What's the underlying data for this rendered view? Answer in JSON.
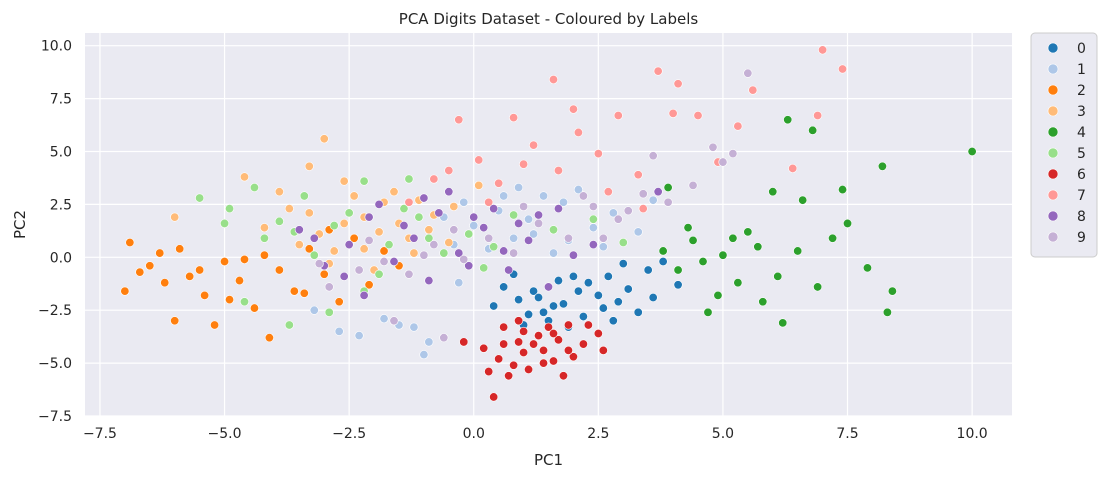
{
  "chart_data": {
    "type": "scatter",
    "title": "PCA Digits Dataset - Coloured by Labels",
    "xlabel": "PC1",
    "ylabel": "PC2",
    "xlim": [
      -7.8,
      10.8
    ],
    "ylim": [
      -7.5,
      10.6
    ],
    "xticks": [
      -7.5,
      -5.0,
      -2.5,
      0.0,
      2.5,
      5.0,
      7.5,
      10.0
    ],
    "yticks": [
      -7.5,
      -5.0,
      -2.5,
      0.0,
      2.5,
      5.0,
      7.5,
      10.0
    ],
    "xtick_labels": [
      "−7.5",
      "−5.0",
      "−2.5",
      "0.0",
      "2.5",
      "5.0",
      "7.5",
      "10.0"
    ],
    "ytick_labels": [
      "−7.5",
      "−5.0",
      "−2.5",
      "0.0",
      "2.5",
      "5.0",
      "7.5",
      "10.0"
    ],
    "grid": true,
    "legend_position": "outside-right-top",
    "series": [
      {
        "name": "0",
        "color": "#1f77b4",
        "points": [
          [
            1.2,
            -1.6
          ],
          [
            1.8,
            -2.2
          ],
          [
            2.3,
            -1.2
          ],
          [
            0.9,
            -2.0
          ],
          [
            1.5,
            -3.0
          ],
          [
            2.6,
            -2.4
          ],
          [
            3.1,
            -1.5
          ],
          [
            3.5,
            -0.6
          ],
          [
            2.0,
            -0.9
          ],
          [
            1.4,
            -2.6
          ],
          [
            0.6,
            -1.4
          ],
          [
            1.0,
            -3.2
          ],
          [
            2.8,
            -3.0
          ],
          [
            3.3,
            -2.6
          ],
          [
            1.7,
            -1.1
          ],
          [
            2.2,
            -2.8
          ],
          [
            0.8,
            -0.8
          ],
          [
            1.6,
            -2.3
          ],
          [
            2.5,
            -1.8
          ],
          [
            3.0,
            -0.3
          ],
          [
            3.8,
            -0.2
          ],
          [
            4.1,
            -1.3
          ],
          [
            2.9,
            -2.1
          ],
          [
            1.3,
            -1.9
          ],
          [
            0.4,
            -2.3
          ],
          [
            1.1,
            -2.7
          ],
          [
            2.1,
            -1.6
          ],
          [
            2.7,
            -0.9
          ],
          [
            3.6,
            -1.9
          ],
          [
            1.9,
            -3.3
          ]
        ]
      },
      {
        "name": "1",
        "color": "#aec7e8",
        "points": [
          [
            0.0,
            1.5
          ],
          [
            0.5,
            2.2
          ],
          [
            1.1,
            1.8
          ],
          [
            -0.4,
            0.6
          ],
          [
            1.8,
            2.6
          ],
          [
            2.4,
            1.4
          ],
          [
            -1.5,
            -3.2
          ],
          [
            -2.3,
            -3.7
          ],
          [
            -3.2,
            -2.5
          ],
          [
            -0.9,
            -4.0
          ],
          [
            -1.2,
            -3.3
          ],
          [
            0.3,
            0.4
          ],
          [
            1.4,
            2.9
          ],
          [
            2.8,
            2.1
          ],
          [
            3.3,
            1.2
          ],
          [
            -0.6,
            1.9
          ],
          [
            0.8,
            0.9
          ],
          [
            -1.8,
            -2.9
          ],
          [
            1.6,
            0.2
          ],
          [
            2.1,
            3.2
          ],
          [
            -2.7,
            -3.5
          ],
          [
            -0.2,
            2.6
          ],
          [
            0.9,
            3.3
          ],
          [
            3.6,
            2.7
          ],
          [
            -1.0,
            -4.6
          ],
          [
            1.2,
            1.1
          ],
          [
            2.6,
            0.5
          ],
          [
            -0.3,
            -1.2
          ],
          [
            0.6,
            2.9
          ],
          [
            1.9,
            0.8
          ]
        ]
      },
      {
        "name": "2",
        "color": "#ff7f0e",
        "points": [
          [
            -7.0,
            -1.6
          ],
          [
            -6.7,
            -0.7
          ],
          [
            -6.3,
            0.2
          ],
          [
            -6.0,
            -3.0
          ],
          [
            -5.7,
            -0.9
          ],
          [
            -5.4,
            -1.8
          ],
          [
            -5.0,
            -0.2
          ],
          [
            -4.7,
            -1.1
          ],
          [
            -4.4,
            -2.4
          ],
          [
            -4.1,
            -3.8
          ],
          [
            -3.9,
            -0.6
          ],
          [
            -3.6,
            -1.6
          ],
          [
            -3.3,
            0.4
          ],
          [
            -3.0,
            -0.8
          ],
          [
            -2.7,
            -2.1
          ],
          [
            -2.4,
            0.9
          ],
          [
            -2.1,
            -1.3
          ],
          [
            -1.8,
            0.3
          ],
          [
            -1.5,
            -0.4
          ],
          [
            -5.2,
            -3.2
          ],
          [
            -6.5,
            -0.4
          ],
          [
            -5.9,
            0.4
          ],
          [
            -4.9,
            -2.0
          ],
          [
            -4.2,
            0.1
          ],
          [
            -3.4,
            -1.7
          ],
          [
            -2.9,
            1.3
          ],
          [
            -6.9,
            0.7
          ],
          [
            -6.2,
            -1.2
          ],
          [
            -5.5,
            -0.6
          ],
          [
            -4.6,
            -0.1
          ]
        ]
      },
      {
        "name": "3",
        "color": "#ffbb78",
        "points": [
          [
            -3.0,
            5.6
          ],
          [
            -3.3,
            4.3
          ],
          [
            -2.6,
            3.6
          ],
          [
            -2.2,
            1.9
          ],
          [
            -1.8,
            2.6
          ],
          [
            -1.3,
            0.9
          ],
          [
            -0.8,
            2.0
          ],
          [
            -2.8,
            0.3
          ],
          [
            -3.7,
            2.3
          ],
          [
            -4.2,
            1.4
          ],
          [
            -2.0,
            -0.6
          ],
          [
            -1.5,
            1.6
          ],
          [
            -0.5,
            0.7
          ],
          [
            -3.1,
            1.1
          ],
          [
            -2.4,
            2.9
          ],
          [
            -1.1,
            2.7
          ],
          [
            -6.0,
            1.9
          ],
          [
            -4.6,
            3.8
          ],
          [
            -3.5,
            0.6
          ],
          [
            -2.2,
            0.4
          ],
          [
            -1.6,
            3.1
          ],
          [
            -0.9,
            1.3
          ],
          [
            0.1,
            3.4
          ],
          [
            -3.9,
            3.1
          ],
          [
            -2.9,
            -0.3
          ],
          [
            -1.9,
            1.2
          ],
          [
            -0.4,
            2.4
          ],
          [
            -3.3,
            2.1
          ],
          [
            -2.6,
            1.6
          ],
          [
            -1.2,
            0.2
          ]
        ]
      },
      {
        "name": "4",
        "color": "#2ca02c",
        "points": [
          [
            10.0,
            5.0
          ],
          [
            8.4,
            -1.6
          ],
          [
            8.3,
            -2.6
          ],
          [
            8.2,
            4.3
          ],
          [
            7.4,
            3.2
          ],
          [
            7.5,
            1.6
          ],
          [
            6.8,
            6.0
          ],
          [
            6.6,
            2.7
          ],
          [
            6.3,
            6.5
          ],
          [
            6.0,
            3.1
          ],
          [
            5.7,
            0.5
          ],
          [
            5.3,
            -1.2
          ],
          [
            5.0,
            0.1
          ],
          [
            4.7,
            -2.6
          ],
          [
            4.4,
            0.8
          ],
          [
            4.1,
            -0.6
          ],
          [
            3.8,
            0.3
          ],
          [
            6.1,
            -0.9
          ],
          [
            6.9,
            -1.4
          ],
          [
            7.2,
            0.9
          ],
          [
            5.5,
            1.2
          ],
          [
            4.9,
            -1.8
          ],
          [
            4.3,
            1.4
          ],
          [
            5.8,
            -2.1
          ],
          [
            6.5,
            0.3
          ],
          [
            7.9,
            -0.5
          ],
          [
            4.6,
            -0.2
          ],
          [
            5.2,
            0.9
          ],
          [
            3.9,
            3.3
          ],
          [
            6.2,
            -3.1
          ]
        ]
      },
      {
        "name": "5",
        "color": "#98df8a",
        "points": [
          [
            -5.5,
            2.8
          ],
          [
            -4.9,
            2.3
          ],
          [
            -4.4,
            3.3
          ],
          [
            -3.9,
            1.7
          ],
          [
            -3.4,
            2.9
          ],
          [
            -2.8,
            1.5
          ],
          [
            -2.2,
            3.6
          ],
          [
            -1.7,
            0.6
          ],
          [
            -1.1,
            1.9
          ],
          [
            -0.6,
            0.2
          ],
          [
            -0.1,
            1.1
          ],
          [
            0.4,
            0.5
          ],
          [
            -4.6,
            -2.1
          ],
          [
            -3.7,
            -3.2
          ],
          [
            -2.9,
            -2.6
          ],
          [
            -2.2,
            -1.6
          ],
          [
            -4.2,
            0.9
          ],
          [
            -5.0,
            1.6
          ],
          [
            -3.2,
            0.1
          ],
          [
            -1.4,
            2.3
          ],
          [
            0.8,
            2.0
          ],
          [
            1.6,
            1.3
          ],
          [
            2.4,
            1.8
          ],
          [
            3.0,
            0.7
          ],
          [
            -2.5,
            2.1
          ],
          [
            -1.9,
            -0.8
          ],
          [
            -0.9,
            0.9
          ],
          [
            -3.6,
            1.2
          ],
          [
            -1.3,
            3.7
          ],
          [
            0.2,
            -0.5
          ]
        ]
      },
      {
        "name": "6",
        "color": "#d62728",
        "points": [
          [
            0.4,
            -6.6
          ],
          [
            0.7,
            -5.6
          ],
          [
            1.0,
            -4.5
          ],
          [
            1.3,
            -3.7
          ],
          [
            1.6,
            -4.9
          ],
          [
            1.9,
            -3.2
          ],
          [
            2.2,
            -4.1
          ],
          [
            2.5,
            -3.6
          ],
          [
            0.2,
            -4.3
          ],
          [
            -0.2,
            -4.0
          ],
          [
            0.6,
            -3.3
          ],
          [
            1.1,
            -5.3
          ],
          [
            1.8,
            -5.6
          ],
          [
            2.0,
            -4.7
          ],
          [
            0.9,
            -4.0
          ],
          [
            1.4,
            -4.4
          ],
          [
            0.5,
            -4.8
          ],
          [
            1.5,
            -3.3
          ],
          [
            2.3,
            -3.2
          ],
          [
            0.8,
            -5.1
          ],
          [
            1.2,
            -4.1
          ],
          [
            1.7,
            -3.9
          ],
          [
            0.3,
            -5.4
          ],
          [
            2.6,
            -4.4
          ],
          [
            1.0,
            -3.5
          ],
          [
            0.6,
            -4.1
          ],
          [
            1.9,
            -4.4
          ],
          [
            1.4,
            -5.0
          ],
          [
            0.9,
            -3.0
          ],
          [
            1.6,
            -3.6
          ]
        ]
      },
      {
        "name": "7",
        "color": "#ff9896",
        "points": [
          [
            7.0,
            9.8
          ],
          [
            7.4,
            8.9
          ],
          [
            6.9,
            6.7
          ],
          [
            6.4,
            4.2
          ],
          [
            5.3,
            6.2
          ],
          [
            4.9,
            4.5
          ],
          [
            4.5,
            6.7
          ],
          [
            4.1,
            8.2
          ],
          [
            3.7,
            8.8
          ],
          [
            3.3,
            3.9
          ],
          [
            2.9,
            6.7
          ],
          [
            2.5,
            4.9
          ],
          [
            2.1,
            5.9
          ],
          [
            1.7,
            4.1
          ],
          [
            1.2,
            5.3
          ],
          [
            0.8,
            6.6
          ],
          [
            0.5,
            3.5
          ],
          [
            0.1,
            4.6
          ],
          [
            -0.3,
            6.5
          ],
          [
            -0.8,
            3.7
          ],
          [
            -1.3,
            2.6
          ],
          [
            2.0,
            7.0
          ],
          [
            1.6,
            8.4
          ],
          [
            3.4,
            2.3
          ],
          [
            0.3,
            2.6
          ],
          [
            4.0,
            6.8
          ],
          [
            5.6,
            7.9
          ],
          [
            2.7,
            3.1
          ],
          [
            1.0,
            4.4
          ],
          [
            -0.5,
            4.1
          ]
        ]
      },
      {
        "name": "8",
        "color": "#9467bd",
        "points": [
          [
            -3.5,
            1.3
          ],
          [
            -3.0,
            -0.4
          ],
          [
            -2.5,
            0.6
          ],
          [
            -2.1,
            1.9
          ],
          [
            -1.6,
            -0.2
          ],
          [
            -1.2,
            0.9
          ],
          [
            -0.7,
            2.1
          ],
          [
            -0.3,
            0.2
          ],
          [
            0.2,
            1.4
          ],
          [
            0.7,
            -0.6
          ],
          [
            1.1,
            0.8
          ],
          [
            1.5,
            -1.4
          ],
          [
            2.0,
            0.1
          ],
          [
            -1.9,
            2.5
          ],
          [
            -0.9,
            -1.1
          ],
          [
            0.4,
            2.3
          ],
          [
            -2.6,
            -0.9
          ],
          [
            -0.5,
            3.1
          ],
          [
            1.7,
            2.3
          ],
          [
            3.7,
            3.1
          ],
          [
            -1.4,
            1.5
          ],
          [
            -0.1,
            -0.4
          ],
          [
            0.9,
            1.6
          ],
          [
            2.4,
            0.6
          ],
          [
            -2.2,
            -1.8
          ],
          [
            -1.0,
            2.8
          ],
          [
            0.6,
            0.3
          ],
          [
            1.3,
            2.0
          ],
          [
            -3.2,
            0.9
          ],
          [
            0.0,
            1.9
          ]
        ]
      },
      {
        "name": "9",
        "color": "#c5b0d5",
        "points": [
          [
            5.5,
            8.7
          ],
          [
            5.0,
            4.5
          ],
          [
            4.4,
            3.4
          ],
          [
            3.9,
            2.6
          ],
          [
            3.4,
            3.0
          ],
          [
            2.9,
            1.8
          ],
          [
            2.4,
            2.4
          ],
          [
            1.9,
            0.9
          ],
          [
            1.3,
            1.6
          ],
          [
            0.8,
            0.2
          ],
          [
            0.3,
            0.9
          ],
          [
            -0.2,
            -0.1
          ],
          [
            -0.8,
            0.6
          ],
          [
            -1.3,
            -0.8
          ],
          [
            -1.8,
            -0.2
          ],
          [
            -2.3,
            -0.6
          ],
          [
            -2.9,
            -1.4
          ],
          [
            -1.6,
            -3.0
          ],
          [
            -0.6,
            -3.8
          ],
          [
            3.6,
            4.8
          ],
          [
            5.2,
            4.9
          ],
          [
            4.8,
            5.2
          ],
          [
            2.2,
            2.9
          ],
          [
            1.0,
            2.4
          ],
          [
            -0.4,
            1.3
          ],
          [
            -1.0,
            0.1
          ],
          [
            -2.1,
            0.8
          ],
          [
            -3.1,
            -0.3
          ],
          [
            3.1,
            2.2
          ],
          [
            2.6,
            0.9
          ]
        ]
      }
    ]
  }
}
